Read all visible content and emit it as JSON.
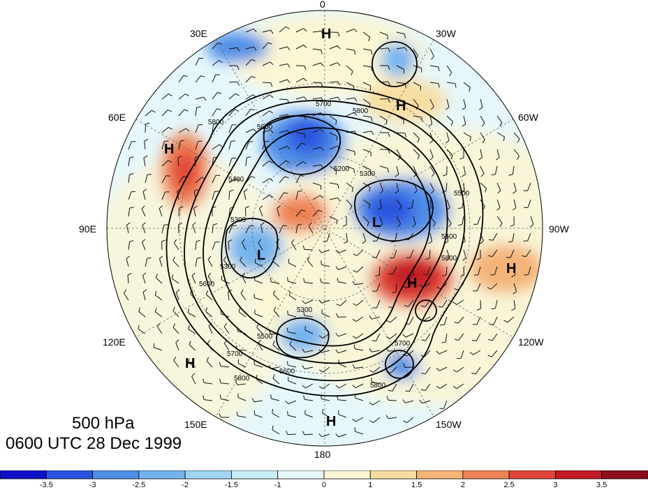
{
  "figure": {
    "level_label": "500 hPa",
    "time_label": "0600 UTC 28 Dec 1999"
  },
  "longitude_labels": [
    "0",
    "30W",
    "60W",
    "90W",
    "120W",
    "150W",
    "180",
    "150E",
    "120E",
    "90E",
    "60E",
    "30E"
  ],
  "contour_labels": [
    "5700",
    "5800",
    "5600",
    "5200",
    "5300",
    "5500",
    "5300",
    "5400",
    "5800",
    "5600",
    "5800",
    "5300",
    "5500",
    "5600",
    "5700",
    "5800",
    "5800",
    "5600",
    "5700",
    "5300"
  ],
  "pressure_centers": [
    {
      "type": "H"
    },
    {
      "type": "H"
    },
    {
      "type": "H"
    },
    {
      "type": "L"
    },
    {
      "type": "L"
    },
    {
      "type": "H"
    },
    {
      "type": "H"
    },
    {
      "type": "H"
    },
    {
      "type": "H"
    }
  ],
  "colorbar": {
    "labels": [
      "-3.5",
      "-3",
      "-2.5",
      "-2",
      "-1.5",
      "-1",
      "0",
      "1",
      "1.5",
      "2",
      "2.5",
      "3",
      "3.5"
    ],
    "colors": [
      "#1010c8",
      "#2a55e0",
      "#4f8fe8",
      "#73b4ee",
      "#9fd6f4",
      "#c8ecf8",
      "#e6f7fb",
      "#fbf6d4",
      "#f8dda0",
      "#f4b478",
      "#ee8255",
      "#e24638",
      "#c21a26",
      "#8e0c1c"
    ]
  }
}
